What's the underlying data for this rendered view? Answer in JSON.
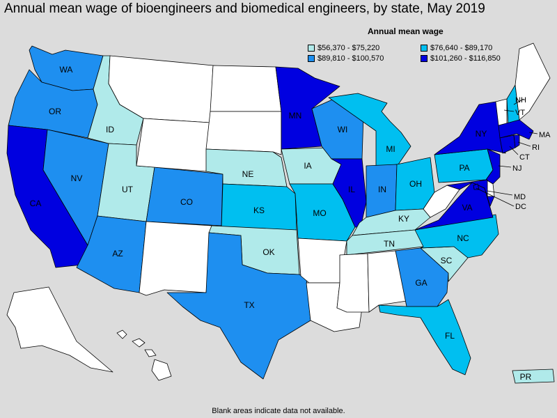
{
  "title": "Annual mean wage of bioengineers and biomedical engineers, by state, May 2019",
  "legend": {
    "title": "Annual mean wage",
    "items": [
      {
        "label": "$56,370 - $75,220",
        "color": "#b0eaea"
      },
      {
        "label": "$76,640 - $89,170",
        "color": "#00bff0"
      },
      {
        "label": "$89,810 - $100,570",
        "color": "#1e8ff0"
      },
      {
        "label": "$101,260 - $116,850",
        "color": "#0000e0"
      }
    ]
  },
  "footnote": "Blank areas indicate data not available.",
  "colors": {
    "no_data": "#ffffff",
    "tier1": "#b0eaea",
    "tier2": "#00bff0",
    "tier3": "#1e8ff0",
    "tier4": "#0000e0"
  },
  "states": {
    "WA": {
      "label": "WA",
      "tier": 3
    },
    "OR": {
      "label": "OR",
      "tier": 3
    },
    "CA": {
      "label": "CA",
      "tier": 4
    },
    "NV": {
      "label": "NV",
      "tier": 3
    },
    "ID": {
      "label": "ID",
      "tier": 1
    },
    "UT": {
      "label": "UT",
      "tier": 1
    },
    "AZ": {
      "label": "AZ",
      "tier": 3
    },
    "CO": {
      "label": "CO",
      "tier": 3
    },
    "MT": {
      "label": "",
      "tier": 0
    },
    "WY": {
      "label": "",
      "tier": 0
    },
    "NM": {
      "label": "",
      "tier": 0
    },
    "ND": {
      "label": "",
      "tier": 0
    },
    "SD": {
      "label": "",
      "tier": 0
    },
    "NE": {
      "label": "NE",
      "tier": 1
    },
    "KS": {
      "label": "KS",
      "tier": 2
    },
    "OK": {
      "label": "OK",
      "tier": 1
    },
    "TX": {
      "label": "TX",
      "tier": 3
    },
    "MN": {
      "label": "MN",
      "tier": 4
    },
    "IA": {
      "label": "IA",
      "tier": 1
    },
    "MO": {
      "label": "MO",
      "tier": 2
    },
    "AR": {
      "label": "",
      "tier": 0
    },
    "LA": {
      "label": "",
      "tier": 0
    },
    "WI": {
      "label": "WI",
      "tier": 3
    },
    "IL": {
      "label": "IL",
      "tier": 4
    },
    "MI": {
      "label": "MI",
      "tier": 2
    },
    "IN": {
      "label": "IN",
      "tier": 3
    },
    "OH": {
      "label": "OH",
      "tier": 2
    },
    "KY": {
      "label": "KY",
      "tier": 1
    },
    "TN": {
      "label": "TN",
      "tier": 1
    },
    "MS": {
      "label": "",
      "tier": 0
    },
    "AL": {
      "label": "",
      "tier": 0
    },
    "GA": {
      "label": "GA",
      "tier": 3
    },
    "FL": {
      "label": "FL",
      "tier": 2
    },
    "SC": {
      "label": "SC",
      "tier": 1
    },
    "NC": {
      "label": "NC",
      "tier": 2
    },
    "VA": {
      "label": "VA",
      "tier": 4
    },
    "WV": {
      "label": "",
      "tier": 0
    },
    "PA": {
      "label": "PA",
      "tier": 2
    },
    "NY": {
      "label": "NY",
      "tier": 4
    },
    "VT": {
      "label": "VT",
      "tier": 0
    },
    "NH": {
      "label": "NH",
      "tier": 2
    },
    "ME": {
      "label": "",
      "tier": 0
    },
    "MA": {
      "label": "MA",
      "tier": 4
    },
    "CT": {
      "label": "CT",
      "tier": 4
    },
    "RI": {
      "label": "RI",
      "tier": 4
    },
    "NJ": {
      "label": "NJ",
      "tier": 4
    },
    "DE": {
      "label": "",
      "tier": 0
    },
    "MD": {
      "label": "MD",
      "tier": 4
    },
    "DC": {
      "label": "DC",
      "tier": 4
    },
    "AK": {
      "label": "",
      "tier": 0
    },
    "HI": {
      "label": "",
      "tier": 0
    },
    "PR": {
      "label": "PR",
      "tier": 1
    }
  }
}
